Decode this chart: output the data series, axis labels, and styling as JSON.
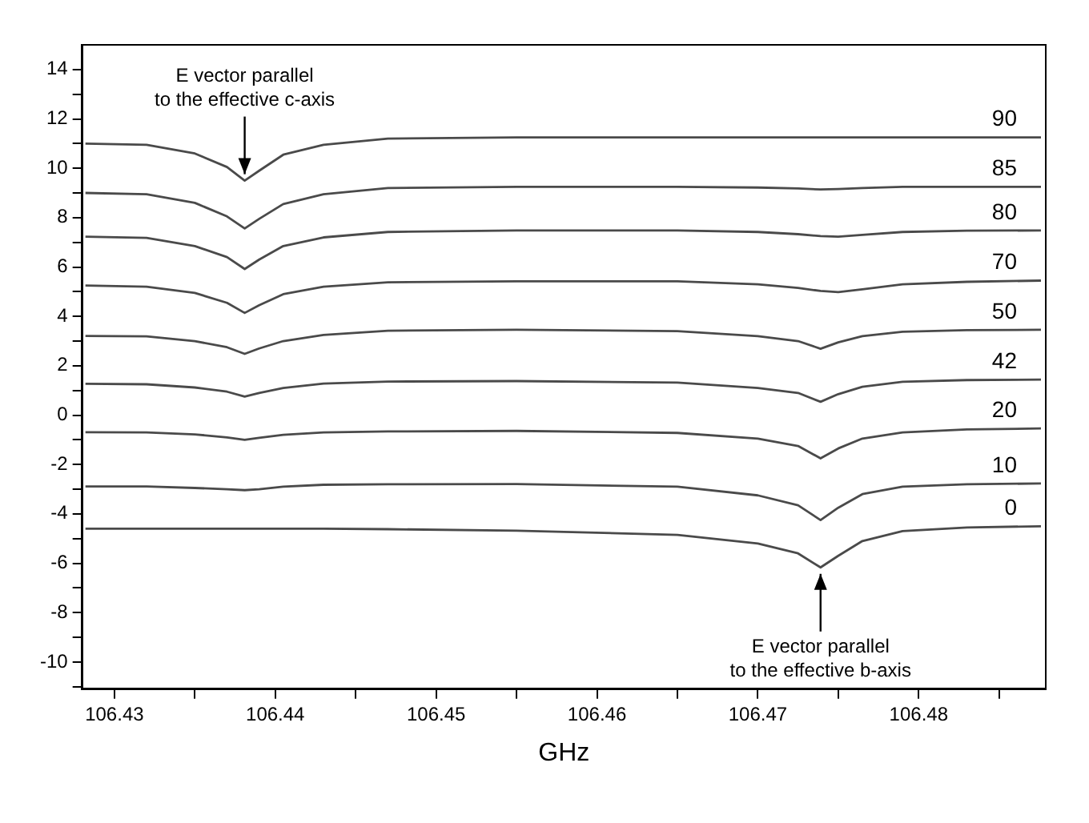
{
  "chart_data": {
    "type": "line",
    "xlabel": "GHz",
    "legend": false,
    "grid": false,
    "xlim": [
      106.428,
      106.4879
    ],
    "xticks": [
      106.43,
      {
        "value": 106.435,
        "label": null
      },
      106.44,
      {
        "value": 106.445,
        "label": null
      },
      106.45,
      {
        "value": 106.455,
        "label": null
      },
      106.46,
      {
        "value": 106.465,
        "label": null
      },
      106.47,
      {
        "value": 106.475,
        "label": null
      },
      106.48,
      {
        "value": 106.485,
        "label": null
      }
    ],
    "ylim": [
      -11.1,
      15
    ],
    "yticks": [
      {
        "value": -11,
        "label": null
      },
      -10,
      {
        "value": -9,
        "label": null
      },
      -8,
      {
        "value": -7,
        "label": null
      },
      -6,
      {
        "value": -5,
        "label": null
      },
      -4,
      {
        "value": -3,
        "label": null
      },
      -2,
      {
        "value": -1,
        "label": null
      },
      0,
      {
        "value": 1,
        "label": null
      },
      2,
      {
        "value": 3,
        "label": null
      },
      4,
      {
        "value": 5,
        "label": null
      },
      6,
      {
        "value": 7,
        "label": null
      },
      8,
      {
        "value": 9,
        "label": null
      },
      10,
      {
        "value": 11,
        "label": null
      },
      12,
      {
        "value": 13,
        "label": null
      },
      14
    ],
    "x": [
      106.4282,
      106.432,
      106.435,
      106.437,
      106.4381,
      106.439,
      106.4405,
      106.443,
      106.447,
      106.455,
      106.465,
      106.47,
      106.4725,
      106.4739,
      106.475,
      106.4765,
      106.479,
      106.483,
      106.4876
    ],
    "series": [
      {
        "name": "90",
        "color": "#4a4a4a",
        "values": [
          11.0,
          10.95,
          10.6,
          10.05,
          9.5,
          9.9,
          10.55,
          10.95,
          11.2,
          11.25,
          11.25,
          11.25,
          11.25,
          11.25,
          11.25,
          11.25,
          11.25,
          11.25,
          11.25
        ]
      },
      {
        "name": "85",
        "color": "#4a4a4a",
        "values": [
          9.0,
          8.95,
          8.6,
          8.05,
          7.56,
          7.95,
          8.55,
          8.95,
          9.2,
          9.25,
          9.25,
          9.22,
          9.18,
          9.14,
          9.16,
          9.2,
          9.25,
          9.25,
          9.25
        ]
      },
      {
        "name": "80",
        "color": "#4a4a4a",
        "values": [
          7.23,
          7.18,
          6.85,
          6.4,
          5.92,
          6.3,
          6.85,
          7.2,
          7.42,
          7.48,
          7.48,
          7.42,
          7.33,
          7.25,
          7.23,
          7.3,
          7.42,
          7.47,
          7.48
        ]
      },
      {
        "name": "70",
        "color": "#4a4a4a",
        "values": [
          5.25,
          5.2,
          4.95,
          4.55,
          4.14,
          4.45,
          4.9,
          5.2,
          5.38,
          5.42,
          5.42,
          5.3,
          5.15,
          5.03,
          4.98,
          5.1,
          5.3,
          5.4,
          5.45
        ]
      },
      {
        "name": "50",
        "color": "#4a4a4a",
        "values": [
          3.21,
          3.19,
          3.0,
          2.75,
          2.48,
          2.7,
          3.0,
          3.25,
          3.42,
          3.46,
          3.4,
          3.2,
          3.0,
          2.69,
          2.95,
          3.2,
          3.38,
          3.44,
          3.46
        ]
      },
      {
        "name": "42",
        "color": "#4a4a4a",
        "values": [
          1.27,
          1.25,
          1.12,
          0.95,
          0.75,
          0.9,
          1.1,
          1.28,
          1.36,
          1.38,
          1.32,
          1.1,
          0.9,
          0.54,
          0.85,
          1.15,
          1.35,
          1.42,
          1.44
        ]
      },
      {
        "name": "20",
        "color": "#4a4a4a",
        "values": [
          -0.69,
          -0.7,
          -0.78,
          -0.9,
          -1.0,
          -0.92,
          -0.8,
          -0.7,
          -0.66,
          -0.64,
          -0.72,
          -0.95,
          -1.25,
          -1.75,
          -1.35,
          -0.95,
          -0.7,
          -0.58,
          -0.54
        ]
      },
      {
        "name": "10",
        "color": "#4a4a4a",
        "values": [
          -2.89,
          -2.89,
          -2.95,
          -3.0,
          -3.04,
          -3.0,
          -2.9,
          -2.82,
          -2.8,
          -2.79,
          -2.9,
          -3.25,
          -3.65,
          -4.25,
          -3.75,
          -3.2,
          -2.9,
          -2.8,
          -2.77
        ]
      },
      {
        "name": "0",
        "color": "#4a4a4a",
        "values": [
          -4.6,
          -4.6,
          -4.6,
          -4.6,
          -4.6,
          -4.6,
          -4.6,
          -4.6,
          -4.62,
          -4.68,
          -4.85,
          -5.2,
          -5.6,
          -6.17,
          -5.7,
          -5.1,
          -4.7,
          -4.55,
          -4.5
        ]
      }
    ],
    "annotations": [
      {
        "text": "E vector parallel\nto the effective c-axis",
        "x": 106.4381,
        "y": 9.5
      },
      {
        "text": "E vector parallel\nto the effective b-axis",
        "x": 106.4739,
        "y": -6.17
      }
    ]
  }
}
